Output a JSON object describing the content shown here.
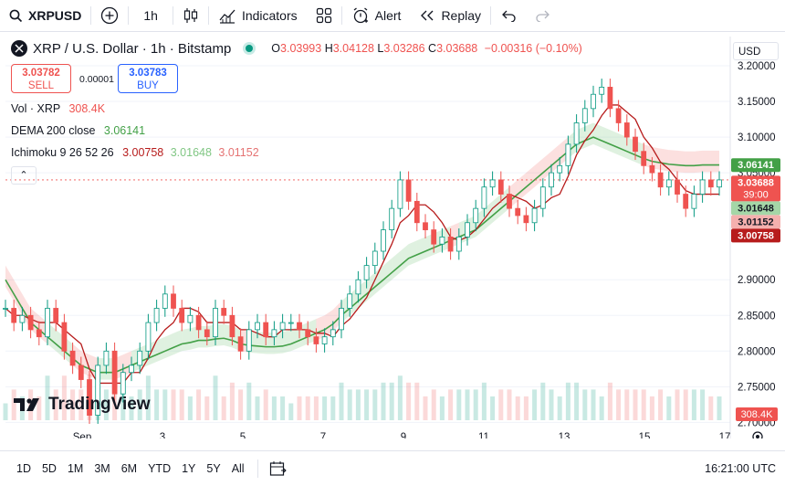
{
  "toolbar": {
    "symbol": "XRPUSD",
    "interval": "1h",
    "indicators_label": "Indicators",
    "alert_label": "Alert",
    "replay_label": "Replay"
  },
  "legend": {
    "title": "XRP / U.S. Dollar · 1h · Bitstamp",
    "o_key": "O",
    "o_val": "3.03993",
    "h_key": "H",
    "h_val": "3.04128",
    "l_key": "L",
    "l_val": "3.03286",
    "c_key": "C",
    "c_val": "3.03688",
    "change": "−0.00316 (−0.10%)"
  },
  "trade": {
    "sell_price": "3.03782",
    "sell_label": "SELL",
    "buy_price": "3.03783",
    "buy_label": "BUY",
    "spread": "0.00001"
  },
  "indicators": {
    "vol_label": "Vol · XRP",
    "vol_value": "308.4K",
    "dema_label": "DEMA 200 close",
    "dema_value": "3.06141",
    "ichimoku_label": "Ichimoku 9 26 52 26",
    "ich_v1": "3.00758",
    "ich_v2": "3.01648",
    "ich_v3": "3.01152"
  },
  "currency": "USD",
  "bottom": {
    "ranges": [
      "1D",
      "5D",
      "1M",
      "3M",
      "6M",
      "YTD",
      "1Y",
      "5Y",
      "All"
    ],
    "time": "16:21:00 UTC"
  },
  "brand": "TradingView",
  "colors": {
    "up": "#089981",
    "down": "#ef5350",
    "dema": "#43a047",
    "conversion": "#b71c1c",
    "accent": "#2962ff"
  },
  "chart_data": {
    "type": "line",
    "title": "XRP / U.S. Dollar · 1h · Bitstamp",
    "x_ticks": [
      "Sep",
      "3",
      "5",
      "7",
      "9",
      "11",
      "13",
      "15",
      "17"
    ],
    "y_ticks": [
      "3.20000",
      "3.15000",
      "3.10000",
      "3.05000",
      "2.90000",
      "2.85000",
      "2.80000",
      "2.75000",
      "2.70000"
    ],
    "ylim": [
      2.68,
      3.2
    ],
    "price_labels": [
      {
        "text": "3.06141",
        "value": 3.06141,
        "color": "#43a047"
      },
      {
        "text": "3.03688",
        "value": 3.03688,
        "color": "#ef5350",
        "sub": "39:00"
      },
      {
        "text": "3.01648",
        "value": 3.01648,
        "color": "#a5d6a7",
        "dark": true
      },
      {
        "text": "3.01152",
        "value": 3.01152,
        "color": "#f5b0ae",
        "dark": true
      },
      {
        "text": "3.00758",
        "value": 3.00758,
        "color": "#b71c1c"
      }
    ],
    "volume_label": "308.4K",
    "series": [
      {
        "name": "Price (close)",
        "values": [
          2.86,
          2.84,
          2.85,
          2.83,
          2.82,
          2.86,
          2.84,
          2.8,
          2.78,
          2.76,
          2.71,
          2.78,
          2.8,
          2.74,
          2.77,
          2.78,
          2.8,
          2.84,
          2.86,
          2.88,
          2.86,
          2.84,
          2.85,
          2.83,
          2.82,
          2.86,
          2.85,
          2.82,
          2.8,
          2.83,
          2.84,
          2.82,
          2.83,
          2.84,
          2.84,
          2.83,
          2.82,
          2.81,
          2.82,
          2.83,
          2.86,
          2.88,
          2.9,
          2.92,
          2.94,
          2.97,
          3.0,
          3.04,
          3.01,
          2.98,
          2.97,
          2.95,
          2.96,
          2.94,
          2.96,
          2.98,
          3.0,
          3.03,
          3.04,
          3.02,
          3.0,
          2.99,
          2.98,
          3.0,
          3.03,
          3.05,
          3.06,
          3.09,
          3.12,
          3.14,
          3.16,
          3.17,
          3.14,
          3.12,
          3.1,
          3.08,
          3.06,
          3.05,
          3.03,
          3.04,
          3.02,
          3.0,
          3.02,
          3.04,
          3.03,
          3.04
        ]
      },
      {
        "name": "DEMA 200",
        "values": [
          2.9,
          2.88,
          2.86,
          2.84,
          2.83,
          2.82,
          2.81,
          2.8,
          2.79,
          2.78,
          2.775,
          2.77,
          2.77,
          2.77,
          2.775,
          2.78,
          2.785,
          2.79,
          2.795,
          2.8,
          2.805,
          2.81,
          2.812,
          2.815,
          2.815,
          2.817,
          2.818,
          2.815,
          2.81,
          2.808,
          2.807,
          2.806,
          2.806,
          2.807,
          2.81,
          2.815,
          2.82,
          2.825,
          2.83,
          2.838,
          2.85,
          2.86,
          2.87,
          2.88,
          2.89,
          2.9,
          2.91,
          2.92,
          2.93,
          2.935,
          2.94,
          2.945,
          2.95,
          2.955,
          2.96,
          2.965,
          2.97,
          2.98,
          2.99,
          3.0,
          3.01,
          3.02,
          3.03,
          3.04,
          3.05,
          3.06,
          3.07,
          3.08,
          3.09,
          3.095,
          3.1,
          3.095,
          3.09,
          3.085,
          3.08,
          3.075,
          3.07,
          3.066,
          3.064,
          3.062,
          3.061,
          3.06,
          3.06,
          3.061,
          3.061,
          3.061
        ]
      }
    ]
  }
}
